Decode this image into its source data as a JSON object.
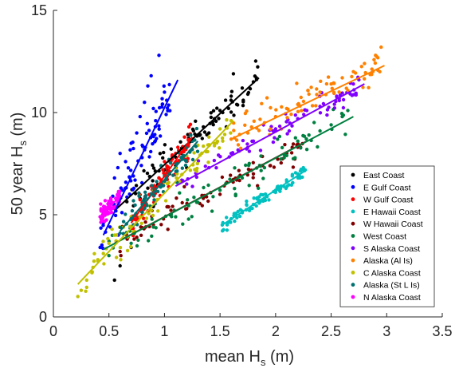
{
  "chart_data": {
    "type": "scatter",
    "title": "",
    "xlabel": "mean H",
    "xlabel_sub": "s",
    "xlabel_unit": " (m)",
    "ylabel": "50 year H",
    "ylabel_sub": "s",
    "ylabel_unit": " (m)",
    "xlim": [
      0,
      3.5
    ],
    "ylim": [
      0,
      15
    ],
    "xticks": [
      0,
      0.5,
      1,
      1.5,
      2,
      2.5,
      3,
      3.5
    ],
    "xtick_labels": [
      "0",
      "0.5",
      "1",
      "1.5",
      "2",
      "2.5",
      "3",
      "3.5"
    ],
    "yticks": [
      0,
      5,
      10,
      15
    ],
    "ytick_labels": [
      "0",
      "5",
      "10",
      "15"
    ],
    "grid": false,
    "legend_position": "lower-right",
    "series": [
      {
        "name": "East Coast",
        "color": "#000000",
        "fit": [
          [
            0.55,
            5.2
          ],
          [
            1.85,
            11.7
          ]
        ],
        "cluster": {
          "x": [
            0.6,
            1.85
          ],
          "spread": 0.7
        },
        "points": [
          [
            0.55,
            1.8
          ],
          [
            0.6,
            2.5
          ],
          [
            0.7,
            3.4
          ],
          [
            0.78,
            5.8
          ],
          [
            0.85,
            6.3
          ],
          [
            0.9,
            5.4
          ],
          [
            0.95,
            6.8
          ],
          [
            1.0,
            7.2
          ],
          [
            1.05,
            7.6
          ],
          [
            1.1,
            7.4
          ],
          [
            1.15,
            8.0
          ],
          [
            1.2,
            7.3
          ],
          [
            1.25,
            8.6
          ],
          [
            1.3,
            8.9
          ],
          [
            1.35,
            9.3
          ],
          [
            1.4,
            9.0
          ],
          [
            1.45,
            9.7
          ],
          [
            1.5,
            10.1
          ],
          [
            1.55,
            10.6
          ],
          [
            1.6,
            10.8
          ],
          [
            1.62,
            11.9
          ],
          [
            1.65,
            10.4
          ],
          [
            1.7,
            11.2
          ],
          [
            1.75,
            10.9
          ],
          [
            1.8,
            11.5
          ]
        ]
      },
      {
        "name": "E Gulf Coast",
        "color": "#0000ff",
        "fit": [
          [
            0.45,
            4.0
          ],
          [
            1.12,
            11.6
          ]
        ],
        "cluster": {
          "x": [
            0.42,
            1.05
          ],
          "spread": 1.1
        },
        "points": [
          [
            0.42,
            3.4
          ],
          [
            0.45,
            4.6
          ],
          [
            0.5,
            5.5
          ],
          [
            0.55,
            6.8
          ],
          [
            0.58,
            7.3
          ],
          [
            0.6,
            8.0
          ],
          [
            0.62,
            6.2
          ],
          [
            0.65,
            7.6
          ],
          [
            0.7,
            8.5
          ],
          [
            0.72,
            6.9
          ],
          [
            0.75,
            9.0
          ],
          [
            0.78,
            9.8
          ],
          [
            0.8,
            8.4
          ],
          [
            0.82,
            10.5
          ],
          [
            0.85,
            11.3
          ],
          [
            0.88,
            11.8
          ],
          [
            0.9,
            10.2
          ],
          [
            0.92,
            9.6
          ],
          [
            0.95,
            12.8
          ],
          [
            1.0,
            11.0
          ],
          [
            1.02,
            10.6
          ]
        ]
      },
      {
        "name": "W Gulf Coast",
        "color": "#ff0000",
        "fit": [
          [
            0.7,
            4.6
          ],
          [
            1.25,
            8.8
          ]
        ],
        "cluster": {
          "x": [
            0.7,
            1.25
          ],
          "spread": 0.6
        },
        "points": [
          [
            0.72,
            4.5
          ],
          [
            0.8,
            5.6
          ],
          [
            0.88,
            6.4
          ],
          [
            0.95,
            6.8
          ],
          [
            1.0,
            7.6
          ],
          [
            1.05,
            7.1
          ],
          [
            1.1,
            8.0
          ],
          [
            1.12,
            8.3
          ],
          [
            1.18,
            8.8
          ],
          [
            1.22,
            9.3
          ],
          [
            1.25,
            8.2
          ]
        ]
      },
      {
        "name": "E Hawaii Coast",
        "color": "#00c0c0",
        "fit": [
          [
            1.52,
            4.5
          ],
          [
            2.28,
            7.2
          ]
        ],
        "cluster": {
          "x": [
            1.52,
            2.28
          ],
          "spread": 0.3
        },
        "points": [
          [
            1.52,
            4.5
          ],
          [
            1.6,
            4.8
          ],
          [
            1.7,
            5.1
          ],
          [
            1.8,
            5.5
          ],
          [
            1.9,
            5.8
          ],
          [
            2.0,
            6.2
          ],
          [
            2.05,
            6.4
          ],
          [
            2.1,
            6.6
          ],
          [
            2.15,
            6.9
          ],
          [
            2.2,
            7.0
          ],
          [
            2.25,
            7.3
          ]
        ]
      },
      {
        "name": "W Hawaii Coast",
        "color": "#800000",
        "fit": [
          [
            0.55,
            3.6
          ],
          [
            2.28,
            8.6
          ]
        ],
        "cluster": {
          "x": [
            0.6,
            2.25
          ],
          "spread": 0.6
        },
        "points": [
          [
            0.6,
            3.2
          ],
          [
            0.75,
            3.9
          ],
          [
            0.9,
            4.5
          ],
          [
            1.05,
            5.0
          ],
          [
            1.2,
            5.3
          ],
          [
            1.35,
            5.8
          ],
          [
            1.5,
            6.0
          ],
          [
            1.65,
            6.7
          ],
          [
            1.8,
            7.0
          ],
          [
            1.95,
            7.4
          ],
          [
            2.1,
            8.0
          ],
          [
            2.2,
            8.3
          ]
        ]
      },
      {
        "name": "West Coast",
        "color": "#008040",
        "fit": [
          [
            0.45,
            3.3
          ],
          [
            2.7,
            9.8
          ]
        ],
        "cluster": {
          "x": [
            0.5,
            2.65
          ],
          "spread": 0.8
        },
        "points": [
          [
            0.5,
            3.0
          ],
          [
            0.7,
            3.6
          ],
          [
            0.9,
            4.4
          ],
          [
            1.1,
            4.9
          ],
          [
            1.3,
            5.6
          ],
          [
            1.5,
            6.2
          ],
          [
            1.7,
            6.8
          ],
          [
            1.9,
            7.3
          ],
          [
            2.1,
            7.9
          ],
          [
            2.2,
            8.6
          ],
          [
            2.3,
            8.9
          ],
          [
            2.4,
            9.1
          ],
          [
            2.5,
            9.4
          ],
          [
            2.6,
            9.8
          ],
          [
            2.65,
            10.1
          ]
        ]
      },
      {
        "name": "S Alaska Coast",
        "color": "#8000ff",
        "fit": [
          [
            1.1,
            6.4
          ],
          [
            2.8,
            11.4
          ]
        ],
        "cluster": {
          "x": [
            1.15,
            2.75
          ],
          "spread": 0.5
        },
        "points": [
          [
            1.2,
            6.5
          ],
          [
            1.4,
            7.3
          ],
          [
            1.6,
            8.0
          ],
          [
            1.8,
            8.6
          ],
          [
            2.0,
            9.2
          ],
          [
            2.2,
            9.7
          ],
          [
            2.4,
            10.3
          ],
          [
            2.55,
            10.8
          ],
          [
            2.7,
            11.4
          ],
          [
            2.75,
            11.6
          ]
        ]
      },
      {
        "name": "Alaska (Al Is)",
        "color": "#ff8000",
        "fit": [
          [
            1.6,
            8.7
          ],
          [
            2.98,
            12.3
          ]
        ],
        "cluster": {
          "x": [
            1.6,
            2.98
          ],
          "spread": 0.8
        },
        "points": [
          [
            1.6,
            8.7
          ],
          [
            1.75,
            9.0
          ],
          [
            1.9,
            9.5
          ],
          [
            2.0,
            9.8
          ],
          [
            2.1,
            10.2
          ],
          [
            2.2,
            10.4
          ],
          [
            2.3,
            10.9
          ],
          [
            2.4,
            11.0
          ],
          [
            2.5,
            11.4
          ],
          [
            2.6,
            11.7
          ],
          [
            2.7,
            12.0
          ],
          [
            2.8,
            12.4
          ],
          [
            2.9,
            12.8
          ],
          [
            2.95,
            13.2
          ]
        ]
      },
      {
        "name": "C Alaska Coast",
        "color": "#c0c000",
        "fit": [
          [
            0.22,
            1.6
          ],
          [
            1.62,
            9.6
          ]
        ],
        "cluster": {
          "x": [
            0.22,
            1.6
          ],
          "spread": 0.8
        },
        "points": [
          [
            0.22,
            1.0
          ],
          [
            0.25,
            1.3
          ],
          [
            0.3,
            1.8
          ],
          [
            0.35,
            2.2
          ],
          [
            0.4,
            2.8
          ],
          [
            0.45,
            3.1
          ],
          [
            0.5,
            3.6
          ],
          [
            0.55,
            4.0
          ],
          [
            0.6,
            4.4
          ],
          [
            0.7,
            4.9
          ],
          [
            0.8,
            5.4
          ],
          [
            0.9,
            6.2
          ],
          [
            1.0,
            6.6
          ],
          [
            1.1,
            7.3
          ],
          [
            1.2,
            7.9
          ],
          [
            1.3,
            8.4
          ],
          [
            1.4,
            8.8
          ],
          [
            1.5,
            9.2
          ],
          [
            1.6,
            9.6
          ]
        ]
      },
      {
        "name": "Alaska (St L Is)",
        "color": "#007070",
        "fit": [
          [
            0.6,
            4.2
          ],
          [
            1.3,
            8.6
          ]
        ],
        "cluster": {
          "x": [
            0.6,
            1.3
          ],
          "spread": 0.6
        },
        "points": [
          [
            0.6,
            4.1
          ],
          [
            0.7,
            4.8
          ],
          [
            0.8,
            5.5
          ],
          [
            0.9,
            6.1
          ],
          [
            1.0,
            6.9
          ],
          [
            1.1,
            7.5
          ],
          [
            1.15,
            7.8
          ],
          [
            1.2,
            8.3
          ],
          [
            1.25,
            8.6
          ]
        ]
      },
      {
        "name": "N Alaska Coast",
        "color": "#ff00ff",
        "fit": [
          [
            0.42,
            4.9
          ],
          [
            0.58,
            5.8
          ]
        ],
        "cluster": {
          "x": [
            0.42,
            0.6
          ],
          "spread": 0.4
        },
        "points": [
          [
            0.42,
            4.9
          ],
          [
            0.45,
            5.1
          ],
          [
            0.48,
            5.3
          ],
          [
            0.5,
            5.5
          ],
          [
            0.53,
            5.6
          ],
          [
            0.56,
            5.8
          ],
          [
            0.58,
            6.0
          ]
        ]
      }
    ]
  }
}
